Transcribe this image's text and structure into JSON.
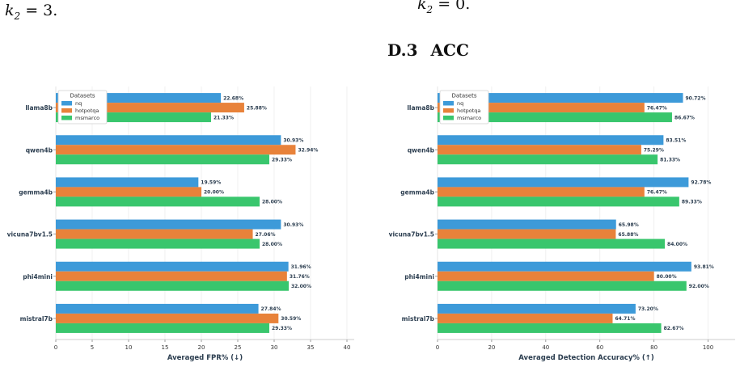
{
  "page_fragments": {
    "left_k": "k",
    "left_sub": "2",
    "left_eq": " = 3.",
    "right_k": "k",
    "right_sub": "2",
    "right_eq": " = 0."
  },
  "section": {
    "number": "D.3",
    "title": "ACC"
  },
  "chart_data": [
    {
      "type": "bar",
      "orientation": "horizontal",
      "xlabel": "Averaged FPR% (↓)",
      "xlim": [
        0,
        41
      ],
      "xticks": [
        0,
        5,
        10,
        15,
        20,
        25,
        30,
        35,
        40
      ],
      "grid": true,
      "legend": {
        "title": "Datasets",
        "placement": "top-left"
      },
      "categories": [
        "llama8b",
        "qwen4b",
        "gemma4b",
        "vicuna7bv1.5",
        "phi4mini",
        "mistral7b"
      ],
      "series": [
        {
          "name": "nq",
          "color": "#3d9ad9",
          "values": [
            22.68,
            30.93,
            19.59,
            30.93,
            31.96,
            27.84
          ],
          "labels": [
            "22.68%",
            "30.93%",
            "19.59%",
            "30.93%",
            "31.96%",
            "27.84%"
          ]
        },
        {
          "name": "hotpotqa",
          "color": "#e8823a",
          "values": [
            25.88,
            32.94,
            20.0,
            27.06,
            31.76,
            30.59
          ],
          "labels": [
            "25.88%",
            "32.94%",
            "20.00%",
            "27.06%",
            "31.76%",
            "30.59%"
          ]
        },
        {
          "name": "msmarco",
          "color": "#39c66d",
          "values": [
            21.33,
            29.33,
            28.0,
            28.0,
            32.0,
            29.33
          ],
          "labels": [
            "21.33%",
            "29.33%",
            "28.00%",
            "28.00%",
            "32.00%",
            "29.33%"
          ]
        }
      ]
    },
    {
      "type": "bar",
      "orientation": "horizontal",
      "xlabel": "Averaged Detection Accuracy% (↑)",
      "xlim": [
        0,
        110
      ],
      "xticks": [
        0,
        20,
        40,
        60,
        80,
        100
      ],
      "grid": true,
      "legend": {
        "title": "Datasets",
        "placement": "top-left"
      },
      "categories": [
        "llama8b",
        "qwen4b",
        "gemma4b",
        "vicuna7bv1.5",
        "phi4mini",
        "mistral7b"
      ],
      "series": [
        {
          "name": "nq",
          "color": "#3d9ad9",
          "values": [
            90.72,
            83.51,
            92.78,
            65.98,
            93.81,
            73.2
          ],
          "labels": [
            "90.72%",
            "83.51%",
            "92.78%",
            "65.98%",
            "93.81%",
            "73.20%"
          ]
        },
        {
          "name": "hotpotqa",
          "color": "#e8823a",
          "values": [
            76.47,
            75.29,
            76.47,
            65.88,
            80.0,
            64.71
          ],
          "labels": [
            "76.47%",
            "75.29%",
            "76.47%",
            "65.88%",
            "80.00%",
            "64.71%"
          ]
        },
        {
          "name": "msmarco",
          "color": "#39c66d",
          "values": [
            86.67,
            81.33,
            89.33,
            84.0,
            92.0,
            82.67
          ],
          "labels": [
            "86.67%",
            "81.33%",
            "89.33%",
            "84.00%",
            "92.00%",
            "82.67%"
          ]
        }
      ]
    }
  ]
}
